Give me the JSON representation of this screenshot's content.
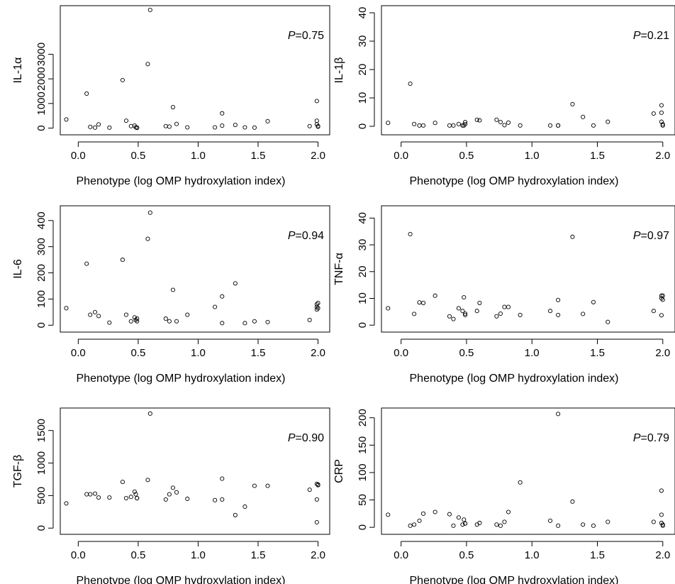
{
  "chart_data": [
    {
      "type": "scatter",
      "xlabel": "Phenotype (log OMP hydroxylation index)",
      "ylabel": "IL-1α",
      "annotation": "P=0.75",
      "xlim": [
        -0.15,
        2.05
      ],
      "ylim": [
        -100,
        4800
      ],
      "xticks": [
        0.0,
        0.5,
        1.0,
        1.5,
        2.0
      ],
      "yticks": [
        0,
        1000,
        2000,
        3000
      ],
      "x": [
        -0.1,
        0.07,
        0.1,
        0.14,
        0.17,
        0.26,
        0.37,
        0.4,
        0.44,
        0.47,
        0.48,
        0.49,
        0.49,
        0.58,
        0.6,
        0.73,
        0.76,
        0.79,
        0.82,
        0.91,
        1.14,
        1.2,
        1.2,
        1.31,
        1.39,
        1.47,
        1.58,
        1.93,
        1.99,
        1.99,
        1.99,
        2.0,
        2.0
      ],
      "y": [
        350,
        1400,
        50,
        20,
        150,
        20,
        1950,
        300,
        80,
        100,
        30,
        10,
        20,
        2600,
        4800,
        80,
        60,
        850,
        170,
        30,
        30,
        600,
        100,
        130,
        30,
        20,
        280,
        80,
        1100,
        300,
        150,
        80,
        60
      ]
    },
    {
      "type": "scatter",
      "xlabel": "Phenotype (log OMP hydroxylation index)",
      "ylabel": "IL-1β",
      "annotation": "P=0.21",
      "xlim": [
        -0.15,
        2.05
      ],
      "ylim": [
        -1.5,
        41
      ],
      "xticks": [
        0.0,
        0.5,
        1.0,
        1.5,
        2.0
      ],
      "yticks": [
        0,
        10,
        20,
        30,
        40
      ],
      "x": [
        -0.1,
        0.07,
        0.1,
        0.14,
        0.17,
        0.26,
        0.37,
        0.4,
        0.44,
        0.47,
        0.48,
        0.49,
        0.49,
        0.58,
        0.6,
        0.73,
        0.76,
        0.79,
        0.82,
        0.91,
        1.14,
        1.2,
        1.2,
        1.31,
        1.39,
        1.47,
        1.58,
        1.93,
        1.99,
        1.99,
        1.99,
        2.0,
        2.0
      ],
      "y": [
        1.2,
        15,
        0.8,
        0.3,
        0.3,
        1.2,
        0.3,
        0.3,
        0.8,
        0.3,
        0.3,
        0.8,
        1.5,
        2.3,
        2.1,
        2.3,
        1.5,
        0.4,
        1.3,
        0.3,
        0.3,
        0.3,
        0.3,
        7.8,
        3.3,
        0.3,
        1.6,
        4.5,
        7.4,
        4.8,
        1.6,
        0.7,
        0.3
      ]
    },
    {
      "type": "scatter",
      "xlabel": "Phenotype (log OMP hydroxylation index)",
      "ylabel": "IL-6",
      "annotation": "P=0.94",
      "xlim": [
        -0.15,
        2.05
      ],
      "ylim": [
        -10,
        440
      ],
      "xticks": [
        0.0,
        0.5,
        1.0,
        1.5,
        2.0
      ],
      "yticks": [
        0,
        100,
        200,
        300,
        400
      ],
      "x": [
        -0.1,
        0.07,
        0.1,
        0.14,
        0.17,
        0.26,
        0.37,
        0.4,
        0.44,
        0.47,
        0.48,
        0.49,
        0.49,
        0.58,
        0.6,
        0.73,
        0.76,
        0.79,
        0.82,
        0.91,
        1.14,
        1.2,
        1.2,
        1.31,
        1.39,
        1.47,
        1.58,
        1.93,
        1.99,
        1.99,
        1.99,
        2.0,
        2.0
      ],
      "y": [
        65,
        235,
        40,
        50,
        35,
        10,
        250,
        40,
        15,
        30,
        20,
        15,
        25,
        330,
        430,
        25,
        15,
        135,
        15,
        40,
        70,
        110,
        8,
        160,
        8,
        15,
        12,
        20,
        80,
        70,
        60,
        85,
        65
      ]
    },
    {
      "type": "scatter",
      "xlabel": "Phenotype (log OMP hydroxylation index)",
      "ylabel": "TNF-α",
      "annotation": "P=0.97",
      "xlim": [
        -0.15,
        2.05
      ],
      "ylim": [
        -1,
        43
      ],
      "xticks": [
        0.0,
        0.5,
        1.0,
        1.5,
        2.0
      ],
      "yticks": [
        0,
        10,
        20,
        30,
        40
      ],
      "x": [
        -0.1,
        0.07,
        0.1,
        0.14,
        0.17,
        0.26,
        0.37,
        0.4,
        0.44,
        0.47,
        0.48,
        0.49,
        0.49,
        0.58,
        0.6,
        0.73,
        0.76,
        0.79,
        0.82,
        0.91,
        1.14,
        1.2,
        1.2,
        1.31,
        1.39,
        1.47,
        1.58,
        1.93,
        1.99,
        1.99,
        1.99,
        2.0,
        2.0
      ],
      "y": [
        6.3,
        34,
        4.2,
        8.5,
        8.3,
        11,
        3.3,
        2.3,
        6.3,
        5.3,
        10.4,
        3.8,
        4.3,
        5.3,
        8.3,
        3.3,
        4.3,
        6.8,
        6.8,
        3.8,
        5.3,
        9.4,
        3.8,
        33,
        4.2,
        8.6,
        1.2,
        5.3,
        11,
        10,
        3.7,
        11,
        9.5
      ]
    },
    {
      "type": "scatter",
      "xlabel": "Phenotype (log OMP hydroxylation index)",
      "ylabel": "TGF-β",
      "annotation": "P=0.90",
      "xlim": [
        -0.15,
        2.05
      ],
      "ylim": [
        -30,
        1780
      ],
      "xticks": [
        0.0,
        0.5,
        1.0,
        1.5,
        2.0
      ],
      "yticks": [
        0,
        500,
        1000,
        1500
      ],
      "x": [
        -0.1,
        0.07,
        0.1,
        0.14,
        0.17,
        0.26,
        0.37,
        0.4,
        0.44,
        0.47,
        0.48,
        0.49,
        0.49,
        0.58,
        0.6,
        0.73,
        0.76,
        0.79,
        0.82,
        0.91,
        1.14,
        1.2,
        1.2,
        1.31,
        1.39,
        1.47,
        1.58,
        1.93,
        1.99,
        1.99,
        1.99,
        2.0,
        2.0
      ],
      "y": [
        380,
        520,
        520,
        530,
        470,
        470,
        710,
        460,
        480,
        560,
        520,
        460,
        460,
        740,
        1760,
        440,
        520,
        620,
        550,
        450,
        430,
        760,
        440,
        200,
        330,
        650,
        650,
        590,
        680,
        440,
        90,
        670,
        660
      ]
    },
    {
      "type": "scatter",
      "xlabel": "Phenotype (log OMP hydroxylation index)",
      "ylabel": "CRP",
      "annotation": "P=0.79",
      "xlim": [
        -0.15,
        2.05
      ],
      "ylim": [
        -5,
        210
      ],
      "xticks": [
        0.0,
        0.5,
        1.0,
        1.5,
        2.0
      ],
      "yticks": [
        0,
        50,
        100,
        150,
        200
      ],
      "x": [
        -0.1,
        0.07,
        0.1,
        0.14,
        0.17,
        0.26,
        0.37,
        0.4,
        0.44,
        0.47,
        0.48,
        0.49,
        0.49,
        0.58,
        0.6,
        0.73,
        0.76,
        0.79,
        0.82,
        0.91,
        1.14,
        1.2,
        1.2,
        1.31,
        1.39,
        1.47,
        1.58,
        1.93,
        1.99,
        1.99,
        1.99,
        2.0,
        2.0
      ],
      "y": [
        23,
        3,
        5,
        12,
        25,
        28,
        24,
        3,
        18,
        5,
        14,
        7,
        7,
        5,
        8,
        5,
        3,
        10,
        28,
        82,
        12,
        207,
        3,
        47,
        5,
        3,
        10,
        10,
        67,
        23,
        8,
        5,
        3
      ]
    }
  ]
}
